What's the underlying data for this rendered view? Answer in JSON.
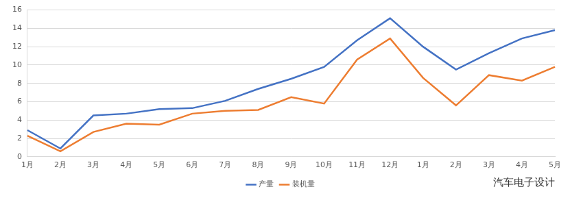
{
  "chart_data": {
    "type": "line",
    "categories": [
      "1月",
      "2月",
      "3月",
      "4月",
      "5月",
      "6月",
      "7月",
      "8月",
      "9月",
      "10月",
      "11月",
      "12月",
      "1月",
      "2月",
      "3月",
      "4月",
      "5月"
    ],
    "series": [
      {
        "name": "产量",
        "color": "#4472c4",
        "marker": "none",
        "values": [
          2.9,
          0.9,
          4.5,
          4.7,
          5.2,
          5.3,
          6.1,
          7.4,
          8.5,
          9.8,
          12.7,
          15.1,
          12.0,
          9.5,
          11.3,
          12.9,
          13.8
        ]
      },
      {
        "name": "装机量",
        "color": "#ed7d31",
        "marker": "none",
        "values": [
          2.3,
          0.6,
          2.7,
          3.6,
          3.5,
          4.7,
          5.0,
          5.1,
          6.5,
          5.8,
          10.6,
          12.9,
          8.6,
          5.6,
          8.9,
          8.3,
          9.8
        ]
      }
    ],
    "ylim": [
      0,
      16
    ],
    "yticks": [
      0,
      2,
      4,
      6,
      8,
      10,
      12,
      14,
      16
    ],
    "grid": true,
    "legend": "bottom",
    "annotations": [
      "汽车电子设计"
    ]
  }
}
